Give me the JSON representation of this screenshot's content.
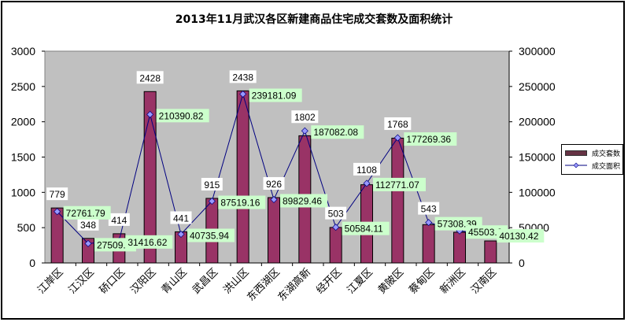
{
  "chart_data": {
    "type": "bar",
    "title": "2013年11月武汉各区新建商品住宅成交套数及面积统计",
    "categories": [
      "江岸区",
      "江汉区",
      "硚口区",
      "汉阳区",
      "青山区",
      "武昌区",
      "洪山区",
      "东西湖区",
      "东湖高新",
      "经开区",
      "江夏区",
      "黄陂区",
      "蔡甸区",
      "新洲区",
      "汉南区"
    ],
    "series": [
      {
        "name": "成交套数",
        "type": "bar",
        "axis": "left",
        "color": "#993366",
        "values": [
          779,
          348,
          414,
          2428,
          441,
          915,
          2438,
          926,
          1802,
          503,
          1108,
          1768,
          543,
          435,
          312
        ]
      },
      {
        "name": "成交面积",
        "type": "line",
        "axis": "right",
        "color": "#000080",
        "marker_color": "#9999ff",
        "values": [
          72761.79,
          27509.5,
          31416.62,
          210390.82,
          40735.94,
          87519.16,
          239181.09,
          89829.46,
          187082.08,
          50584.11,
          112771.07,
          177269.36,
          57308.39,
          45503.9,
          40130.42
        ]
      }
    ],
    "bar_labels": [
      "779",
      "348",
      "414",
      "2428",
      "441",
      "915",
      "2438",
      "926",
      "1802",
      "503",
      "1108",
      "1768",
      "543",
      "",
      ""
    ],
    "line_labels": [
      "72761.79",
      "27509.5",
      "31416.62",
      "210390.82",
      "40735.94",
      "87519.16",
      "239181.09",
      "89829.46",
      "187082.08",
      "50584.11",
      "112771.07",
      "177269.36",
      "57308.39",
      "45503.9",
      "40130.42"
    ],
    "xlabel": "",
    "ylabel": "",
    "ylim": [
      0,
      3000
    ],
    "y2lim": [
      0,
      300000
    ],
    "yticks": [
      0,
      500,
      1000,
      1500,
      2000,
      2500,
      3000
    ],
    "y2ticks": [
      0,
      50000,
      100000,
      150000,
      200000,
      250000,
      300000
    ],
    "grid": false,
    "legend_position": "right",
    "plot_background": "#c0c0c0"
  },
  "legend": {
    "bar_label": "成交套数",
    "line_label": "成交面积"
  }
}
